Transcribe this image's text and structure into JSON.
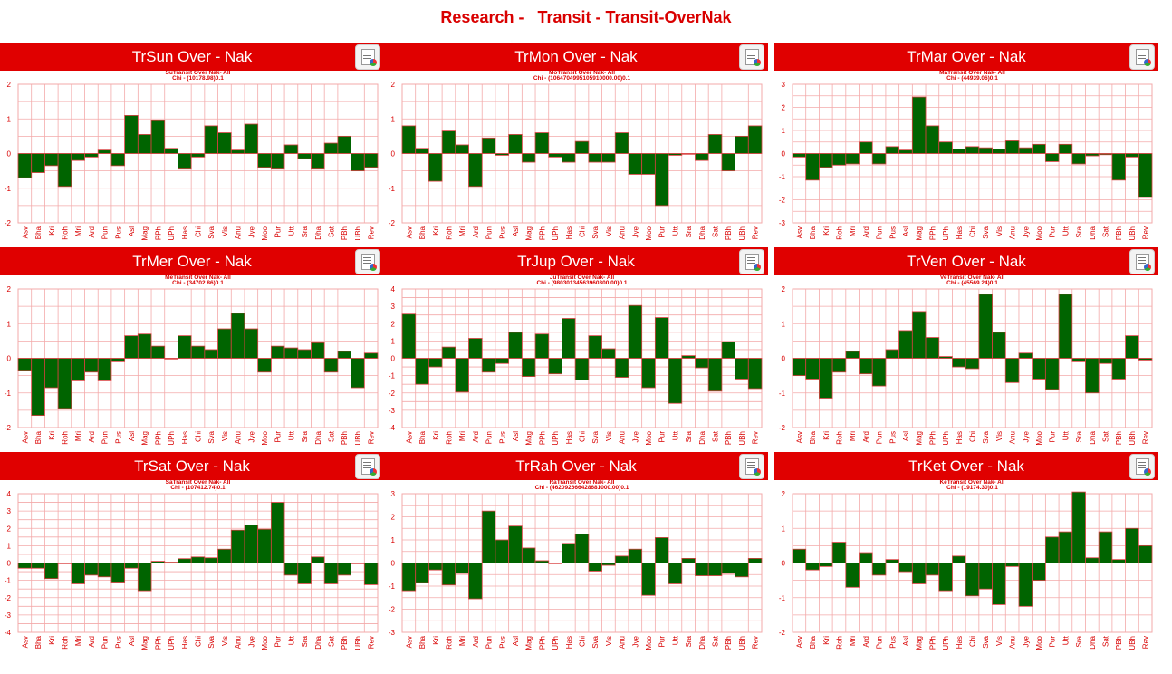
{
  "page": {
    "title": "Research -   Transit - Transit-OverNak"
  },
  "colors": {
    "header": "#e00000",
    "bar": "#006400",
    "bar_stroke": "#d84040",
    "grid": "#f3aaaa",
    "text": "#d90000"
  },
  "icons": {
    "panel": "report-icon"
  },
  "chart_data": [
    {
      "type": "bar",
      "title": "TrSun Over - Nak",
      "subtitle": "SuTransit Over Nak- All",
      "subtitle2": "Chi - (10178.98)0.1",
      "ylim": [
        -2,
        2
      ],
      "yticks": [
        -2,
        -1,
        0,
        1,
        2
      ],
      "categories": [
        "Asv",
        "Bha",
        "Kri",
        "Roh",
        "Mri",
        "Ard",
        "Pun",
        "Pus",
        "Asl",
        "Mag",
        "PPh",
        "UPh",
        "Has",
        "Chi",
        "Sva",
        "Vis",
        "Anu",
        "Jye",
        "Moo",
        "Pur",
        "Utt",
        "Sra",
        "Dha",
        "Sat",
        "PBh",
        "UBh",
        "Rev"
      ],
      "values": [
        -0.7,
        -0.55,
        -0.35,
        -0.95,
        -0.2,
        -0.1,
        0.1,
        -0.35,
        1.1,
        0.55,
        0.95,
        0.15,
        -0.45,
        -0.1,
        0.8,
        0.6,
        0.1,
        0.85,
        -0.4,
        -0.45,
        0.25,
        -0.15,
        -0.45,
        0.3,
        0.5,
        -0.5,
        -0.4
      ]
    },
    {
      "type": "bar",
      "title": "TrMon Over - Nak",
      "subtitle": "MoTransit Over Nak- All",
      "subtitle2": "Chi - (1064704995105910000.00)0.1",
      "ylim": [
        -2,
        2
      ],
      "yticks": [
        -2,
        -1,
        0,
        1,
        2
      ],
      "categories": [
        "Asv",
        "Bha",
        "Kri",
        "Roh",
        "Mri",
        "Ard",
        "Pun",
        "Pus",
        "Asl",
        "Mag",
        "PPh",
        "UPh",
        "Has",
        "Chi",
        "Sva",
        "Vis",
        "Anu",
        "Jye",
        "Moo",
        "Pur",
        "Utt",
        "Sra",
        "Dha",
        "Sat",
        "PBh",
        "UBh",
        "Rev"
      ],
      "values": [
        0.8,
        0.15,
        -0.8,
        0.65,
        0.25,
        -0.95,
        0.45,
        -0.05,
        0.55,
        -0.25,
        0.6,
        -0.1,
        -0.25,
        0.35,
        -0.25,
        -0.25,
        0.6,
        -0.6,
        -0.6,
        -1.5,
        -0.05,
        0.0,
        -0.2,
        0.55,
        -0.5,
        0.5,
        0.8
      ]
    },
    {
      "type": "bar",
      "title": "TrMar Over - Nak",
      "subtitle": "MaTransit Over Nak- All",
      "subtitle2": "Chi - (44939.06)0.1",
      "ylim": [
        -3,
        3
      ],
      "yticks": [
        -3,
        -2,
        -1,
        0,
        1,
        2,
        3
      ],
      "categories": [
        "Asv",
        "Bha",
        "Kri",
        "Roh",
        "Mri",
        "Ard",
        "Pun",
        "Pus",
        "Asl",
        "Mag",
        "PPh",
        "UPh",
        "Has",
        "Chi",
        "Sva",
        "Vis",
        "Anu",
        "Jye",
        "Moo",
        "Pur",
        "Utt",
        "Sra",
        "Dha",
        "Sat",
        "PBh",
        "UBh",
        "Rev"
      ],
      "values": [
        -0.15,
        -1.15,
        -0.6,
        -0.5,
        -0.45,
        0.5,
        -0.45,
        0.3,
        0.15,
        2.45,
        1.2,
        0.5,
        0.2,
        0.3,
        0.25,
        0.2,
        0.55,
        0.25,
        0.4,
        -0.35,
        0.4,
        -0.45,
        -0.1,
        -0.05,
        -1.15,
        -0.15,
        -1.9
      ]
    },
    {
      "type": "bar",
      "title": "TrMer Over - Nak",
      "subtitle": "MeTransit Over Nak- All",
      "subtitle2": "Chi - (34702.86)0.1",
      "ylim": [
        -2,
        2
      ],
      "yticks": [
        -2,
        -1,
        0,
        1,
        2
      ],
      "categories": [
        "Asv",
        "Bha",
        "Kri",
        "Roh",
        "Mri",
        "Ard",
        "Pun",
        "Pus",
        "Asl",
        "Mag",
        "PPh",
        "UPh",
        "Has",
        "Chi",
        "Sva",
        "Vis",
        "Anu",
        "Jye",
        "Moo",
        "Pur",
        "Utt",
        "Sra",
        "Dha",
        "Sat",
        "PBh",
        "UBh",
        "Rev"
      ],
      "values": [
        -0.35,
        -1.65,
        -0.85,
        -1.45,
        -0.65,
        -0.4,
        -0.65,
        -0.1,
        0.65,
        0.7,
        0.35,
        0.0,
        0.65,
        0.35,
        0.25,
        0.85,
        1.3,
        0.85,
        -0.4,
        0.35,
        0.3,
        0.25,
        0.45,
        -0.4,
        0.2,
        -0.85,
        0.15
      ]
    },
    {
      "type": "bar",
      "title": "TrJup Over - Nak",
      "subtitle": "JuTransit Over Nak- All",
      "subtitle2": "Chi - (98030134563960300.00)0.1",
      "ylim": [
        -4,
        4
      ],
      "yticks": [
        -4,
        -3,
        -2,
        -1,
        0,
        1,
        2,
        3,
        4
      ],
      "categories": [
        "Asv",
        "Bha",
        "Kri",
        "Roh",
        "Mri",
        "Ard",
        "Pun",
        "Pus",
        "Asl",
        "Mag",
        "PPh",
        "UPh",
        "Has",
        "Chi",
        "Sva",
        "Vis",
        "Anu",
        "Jye",
        "Moo",
        "Pur",
        "Utt",
        "Sra",
        "Dha",
        "Sat",
        "PBh",
        "UBh",
        "Rev"
      ],
      "values": [
        2.55,
        -1.5,
        -0.5,
        0.65,
        -1.95,
        1.15,
        -0.8,
        -0.3,
        1.5,
        -1.05,
        1.4,
        -0.9,
        2.3,
        -1.25,
        1.3,
        0.55,
        -1.1,
        3.05,
        -1.7,
        2.35,
        -2.6,
        0.15,
        -0.55,
        -1.9,
        0.95,
        -1.2,
        -1.75
      ]
    },
    {
      "type": "bar",
      "title": "TrVen Over - Nak",
      "subtitle": "VeTransit Over Nak- All",
      "subtitle2": "Chi - (45569.24)0.1",
      "ylim": [
        -2,
        2
      ],
      "yticks": [
        -2,
        -1,
        0,
        1,
        2
      ],
      "categories": [
        "Asv",
        "Bha",
        "Kri",
        "Roh",
        "Mri",
        "Ard",
        "Pun",
        "Pus",
        "Asl",
        "Mag",
        "PPh",
        "UPh",
        "Has",
        "Chi",
        "Sva",
        "Vis",
        "Anu",
        "Jye",
        "Moo",
        "Pur",
        "Utt",
        "Sra",
        "Dha",
        "Sat",
        "PBh",
        "UBh",
        "Rev"
      ],
      "values": [
        -0.5,
        -0.6,
        -1.15,
        -0.4,
        0.2,
        -0.45,
        -0.8,
        0.25,
        0.8,
        1.35,
        0.6,
        0.05,
        -0.25,
        -0.3,
        1.85,
        0.75,
        -0.7,
        0.15,
        -0.6,
        -0.9,
        1.85,
        -0.1,
        -1.0,
        -0.15,
        -0.6,
        0.65,
        -0.05
      ]
    },
    {
      "type": "bar",
      "title": "TrSat Over - Nak",
      "subtitle": "SaTransit Over Nak- All",
      "subtitle2": "Chi - (107412.74)0.1",
      "ylim": [
        -4,
        4
      ],
      "yticks": [
        -4,
        -3,
        -2,
        -1,
        0,
        1,
        2,
        3,
        4
      ],
      "categories": [
        "Asv",
        "Bha",
        "Kri",
        "Roh",
        "Mri",
        "Ard",
        "Pun",
        "Pus",
        "Asl",
        "Mag",
        "PPh",
        "UPh",
        "Has",
        "Chi",
        "Sva",
        "Vis",
        "Anu",
        "Jye",
        "Moo",
        "Pur",
        "Utt",
        "Sra",
        "Dha",
        "Sat",
        "PBh",
        "UBh",
        "Rev"
      ],
      "values": [
        -0.3,
        -0.3,
        -0.9,
        0.0,
        -1.2,
        -0.7,
        -0.8,
        -1.1,
        -0.3,
        -1.6,
        0.1,
        0.05,
        0.25,
        0.35,
        0.3,
        0.8,
        1.9,
        2.2,
        1.95,
        3.5,
        -0.7,
        -1.2,
        0.35,
        -1.2,
        -0.7,
        0.0,
        -1.25
      ]
    },
    {
      "type": "bar",
      "title": "TrRah Over - Nak",
      "subtitle": "RaTransit Over Nak- All",
      "subtitle2": "Chi - (462092666428681000.00)0.1",
      "ylim": [
        -3,
        3
      ],
      "yticks": [
        -3,
        -2,
        -1,
        0,
        1,
        2,
        3
      ],
      "categories": [
        "Asv",
        "Bha",
        "Kri",
        "Roh",
        "Mri",
        "Ard",
        "Pun",
        "Pus",
        "Asl",
        "Mag",
        "PPh",
        "UPh",
        "Has",
        "Chi",
        "Sva",
        "Vis",
        "Anu",
        "Jye",
        "Moo",
        "Pur",
        "Utt",
        "Sra",
        "Dha",
        "Sat",
        "PBh",
        "UBh",
        "Rev"
      ],
      "values": [
        -1.2,
        -0.85,
        -0.3,
        -0.95,
        -0.45,
        -1.55,
        2.25,
        1.0,
        1.6,
        0.65,
        0.1,
        0.0,
        0.85,
        1.25,
        -0.35,
        -0.1,
        0.3,
        0.6,
        -1.4,
        1.1,
        -0.9,
        0.2,
        -0.55,
        -0.55,
        -0.45,
        -0.6,
        0.2
      ]
    },
    {
      "type": "bar",
      "title": "TrKet Over - Nak",
      "subtitle": "KeTransit Over Nak- All",
      "subtitle2": "Chi - (19174.30)0.1",
      "ylim": [
        -2,
        2
      ],
      "yticks": [
        -2,
        -1,
        0,
        1,
        2
      ],
      "categories": [
        "Asv",
        "Bha",
        "Kri",
        "Roh",
        "Mri",
        "Ard",
        "Pun",
        "Pus",
        "Asl",
        "Mag",
        "PPh",
        "UPh",
        "Has",
        "Chi",
        "Sva",
        "Vis",
        "Anu",
        "Jye",
        "Moo",
        "Pur",
        "Utt",
        "Sra",
        "Dha",
        "Sat",
        "PBh",
        "UBh",
        "Rev"
      ],
      "values": [
        0.4,
        -0.2,
        -0.1,
        0.6,
        -0.7,
        0.3,
        -0.35,
        0.1,
        -0.25,
        -0.6,
        -0.35,
        -0.8,
        0.2,
        -0.95,
        -0.75,
        -1.2,
        -0.1,
        -1.25,
        -0.5,
        0.75,
        0.9,
        2.05,
        0.15,
        0.9,
        0.1,
        1.0,
        0.5
      ]
    }
  ]
}
